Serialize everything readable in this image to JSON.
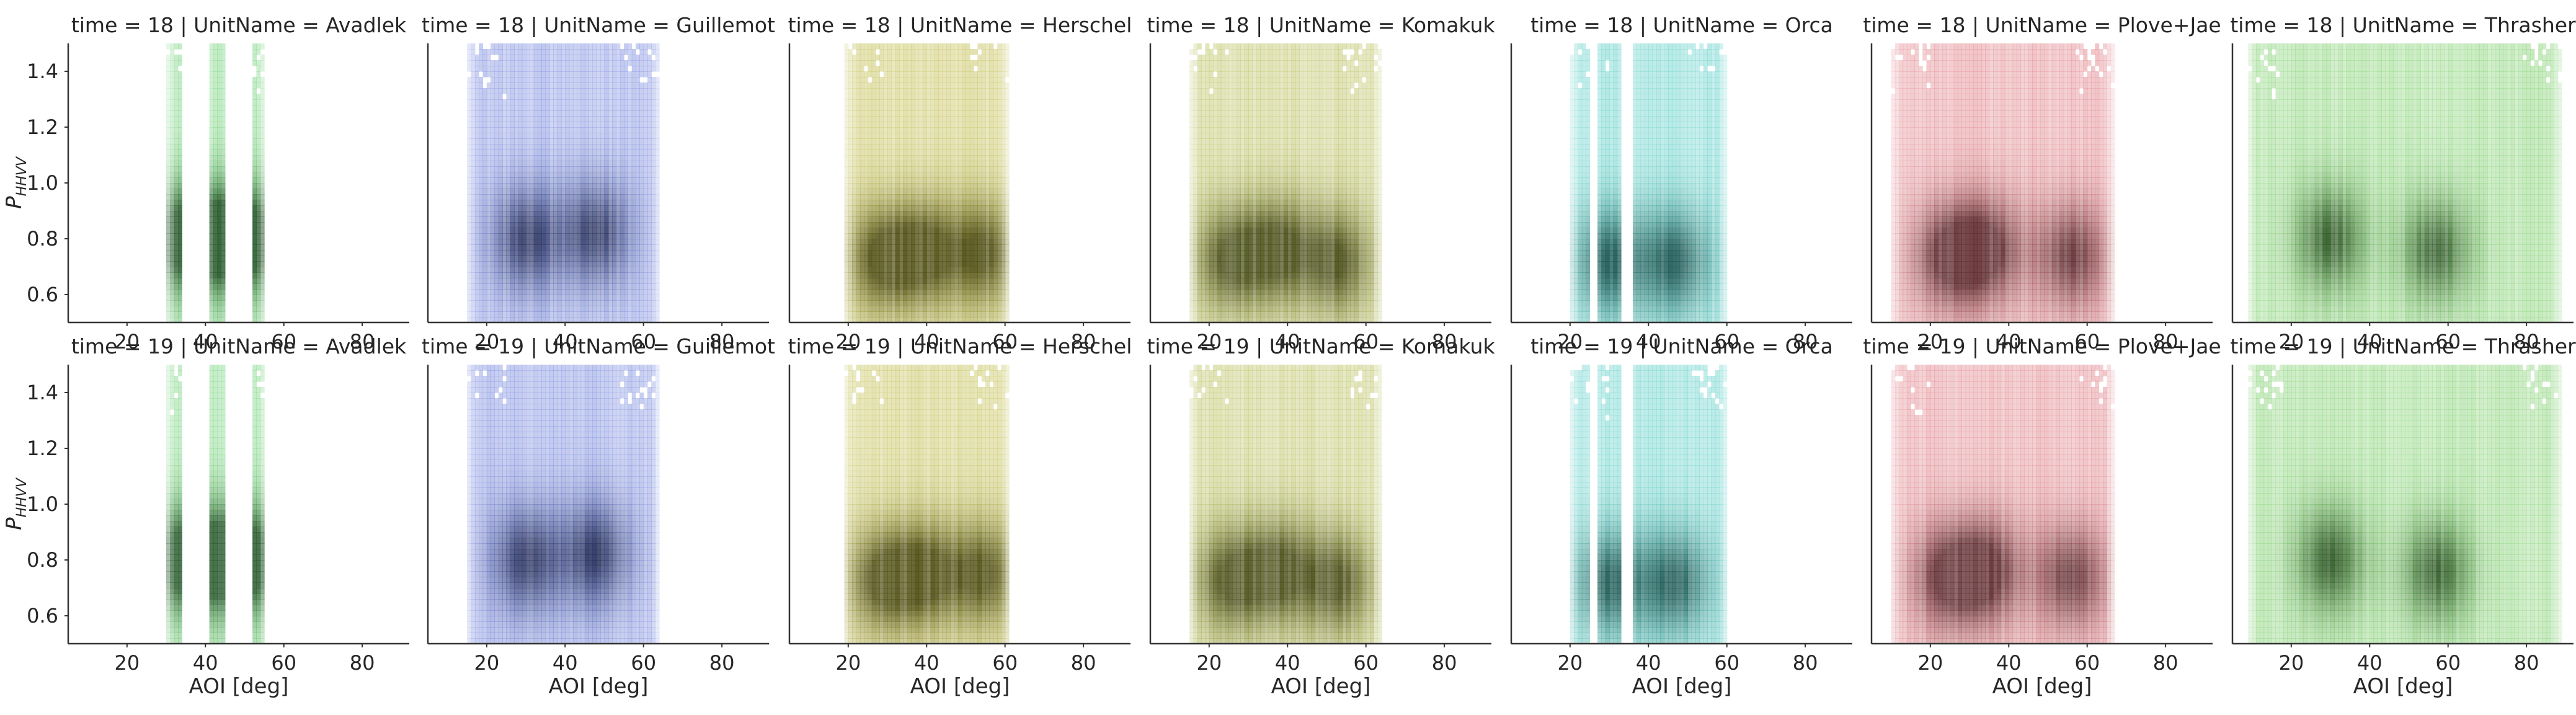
{
  "chart_data": {
    "type": "heatmap",
    "grid": false,
    "xlabel": "AOI [deg]",
    "ylabel": "P_HHVV",
    "ylabel_main": "P",
    "ylabel_sub": "HHVV",
    "xlim": [
      5,
      92
    ],
    "ylim": [
      0.5,
      1.5
    ],
    "x_ticks": [
      20,
      40,
      60,
      80
    ],
    "y_ticks": [
      0.6,
      0.8,
      1.0,
      1.2,
      1.4
    ],
    "x_tick_labels": [
      "20",
      "40",
      "60",
      "80"
    ],
    "y_tick_labels": [
      "0.6",
      "0.8",
      "1.0",
      "1.2",
      "1.4"
    ],
    "rows": [
      {
        "time_label": "time = 18"
      },
      {
        "time_label": "time = 19"
      }
    ],
    "columns": [
      {
        "name": "Avadlek",
        "color": "#5ccb64",
        "x_range": [
          30,
          56
        ],
        "bands": [
          [
            30,
            34
          ],
          [
            41,
            45
          ],
          [
            52,
            55
          ]
        ],
        "peaks": [
          [
            32,
            0.8
          ],
          [
            43,
            0.8
          ],
          [
            53,
            0.8
          ]
        ]
      },
      {
        "name": "Guillemot",
        "color": "#5a6fd6",
        "x_range": [
          15,
          64
        ],
        "bands": [],
        "peaks": [
          [
            48,
            0.82
          ],
          [
            30,
            0.8
          ]
        ]
      },
      {
        "name": "Herschel",
        "color": "#b5b02a",
        "x_range": [
          19,
          61
        ],
        "bands": [],
        "peaks": [
          [
            40,
            0.75
          ],
          [
            55,
            0.75
          ],
          [
            28,
            0.73
          ]
        ]
      },
      {
        "name": "Komakuk",
        "color": "#aab33a",
        "x_range": [
          15,
          64
        ],
        "bands": [],
        "peaks": [
          [
            38,
            0.76
          ],
          [
            53,
            0.72
          ],
          [
            25,
            0.73
          ]
        ]
      },
      {
        "name": "Orca",
        "color": "#3cc5bc",
        "x_range": [
          20,
          60
        ],
        "bands": [
          [
            20,
            25
          ],
          [
            27,
            33
          ],
          [
            36,
            60
          ]
        ],
        "peaks": [
          [
            47,
            0.72
          ],
          [
            30,
            0.72
          ]
        ]
      },
      {
        "name": "Plove+Jae",
        "color": "#d9676f",
        "x_range": [
          10,
          67
        ],
        "bands": [],
        "peaks": [
          [
            35,
            0.76
          ],
          [
            56,
            0.74
          ],
          [
            24,
            0.74
          ]
        ]
      },
      {
        "name": "Thrasher",
        "color": "#66c752",
        "x_range": [
          9,
          89
        ],
        "bands": [],
        "peaks": [
          [
            30,
            0.8
          ],
          [
            57,
            0.76
          ]
        ]
      }
    ],
    "title_template": "{time} | UnitName = {name}",
    "titles": [
      [
        "time = 18 | UnitName = Avadlek",
        "time = 18 | UnitName = Guillemot",
        "time = 18 | UnitName = Herschel",
        "time = 18 | UnitName = Komakuk",
        "time = 18 | UnitName = Orca",
        "time = 18 | UnitName = Plove+Jae",
        "time = 18 | UnitName = Thrasher"
      ],
      [
        "time = 19 | UnitName = Avadlek",
        "time = 19 | UnitName = Guillemot",
        "time = 19 | UnitName = Herschel",
        "time = 19 | UnitName = Komakuk",
        "time = 19 | UnitName = Orca",
        "time = 19 | UnitName = Plove+Jae",
        "time = 19 | UnitName = Thrasher"
      ]
    ]
  }
}
